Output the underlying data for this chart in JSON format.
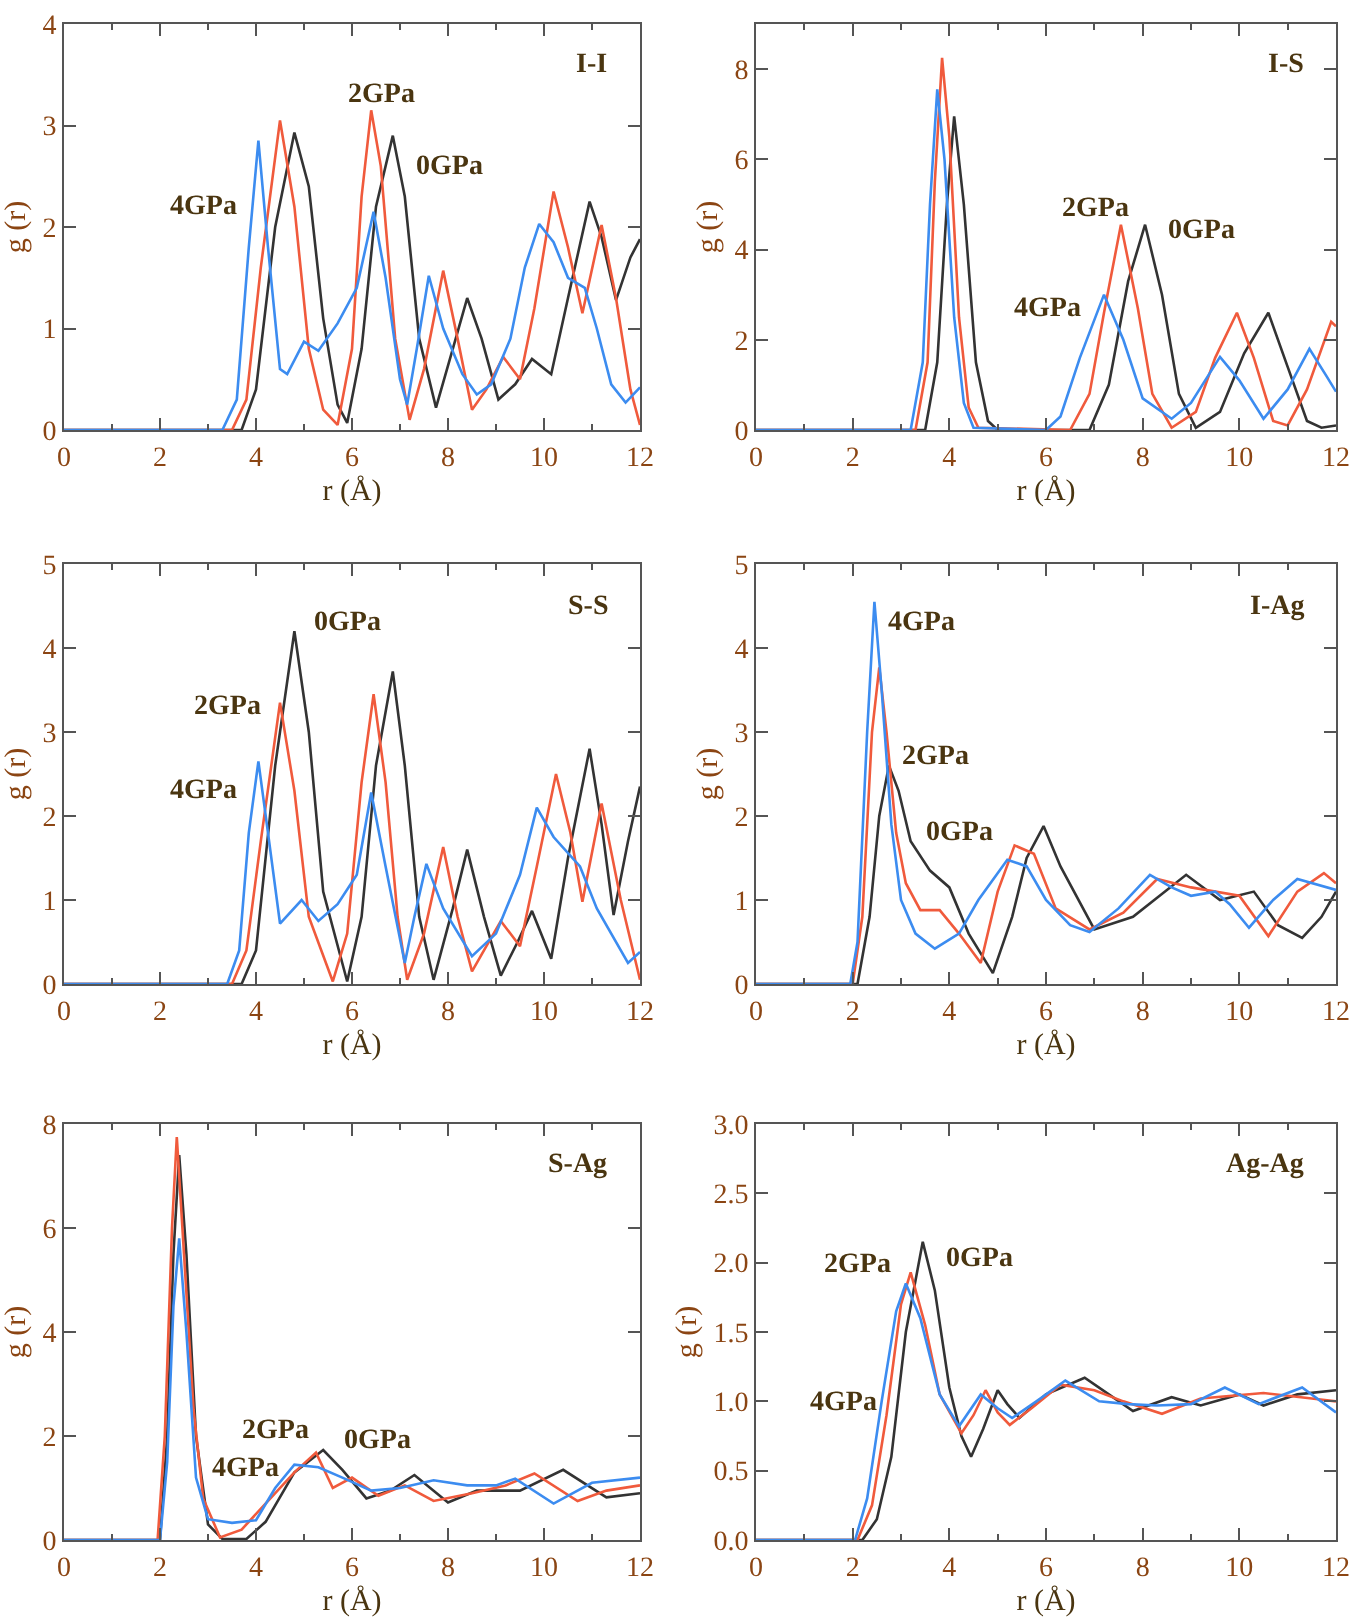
{
  "chart_data": [
    {
      "type": "line",
      "title": "I-I",
      "xlabel": "r (Å)",
      "ylabel": "g (r)",
      "xlim": [
        0,
        12
      ],
      "xticks": [
        0,
        2,
        4,
        6,
        8,
        10,
        12
      ],
      "ylim": [
        0,
        4
      ],
      "yticks": [
        0,
        1,
        2,
        3,
        4
      ],
      "grid": false,
      "legend": false,
      "series": [
        {
          "name": "0GPa",
          "color": "#333333",
          "x": [
            0,
            3.7,
            4.0,
            4.4,
            4.8,
            5.1,
            5.4,
            5.7,
            5.9,
            6.2,
            6.5,
            6.85,
            7.1,
            7.4,
            7.75,
            8.1,
            8.4,
            8.7,
            9.05,
            9.4,
            9.75,
            10.15,
            10.5,
            10.95,
            11.2,
            11.5,
            11.8,
            12
          ],
          "values": [
            0,
            0,
            0.4,
            2.0,
            2.93,
            2.4,
            1.1,
            0.25,
            0.07,
            0.8,
            2.2,
            2.9,
            2.3,
            0.9,
            0.22,
            0.8,
            1.3,
            0.9,
            0.3,
            0.45,
            0.7,
            0.55,
            1.3,
            2.25,
            1.9,
            1.28,
            1.7,
            1.88
          ]
        },
        {
          "name": "2GPa",
          "color": "#f05a3c",
          "x": [
            0,
            3.5,
            3.8,
            4.1,
            4.5,
            4.8,
            5.1,
            5.4,
            5.7,
            6.0,
            6.2,
            6.4,
            6.6,
            6.9,
            7.2,
            7.5,
            7.9,
            8.2,
            8.5,
            8.8,
            9.15,
            9.5,
            9.8,
            10.2,
            10.5,
            10.8,
            11.2,
            11.5,
            11.8,
            12
          ],
          "values": [
            0,
            0,
            0.3,
            1.6,
            3.05,
            2.2,
            0.8,
            0.2,
            0.05,
            0.8,
            2.3,
            3.15,
            2.6,
            0.9,
            0.1,
            0.6,
            1.57,
            0.9,
            0.2,
            0.4,
            0.72,
            0.5,
            1.2,
            2.35,
            1.8,
            1.15,
            2.02,
            1.3,
            0.4,
            0.05
          ]
        },
        {
          "name": "4GPa",
          "color": "#3c8cf0",
          "x": [
            0,
            3.3,
            3.6,
            3.85,
            4.05,
            4.25,
            4.5,
            4.65,
            5.0,
            5.3,
            5.7,
            6.1,
            6.45,
            6.7,
            7.0,
            7.15,
            7.35,
            7.6,
            7.9,
            8.3,
            8.6,
            8.9,
            9.3,
            9.6,
            9.9,
            10.2,
            10.5,
            10.85,
            11.1,
            11.4,
            11.7,
            12
          ],
          "values": [
            0,
            0,
            0.3,
            1.8,
            2.85,
            1.8,
            0.6,
            0.55,
            0.87,
            0.78,
            1.05,
            1.4,
            2.15,
            1.5,
            0.5,
            0.25,
            0.8,
            1.52,
            1.0,
            0.55,
            0.35,
            0.45,
            0.9,
            1.6,
            2.03,
            1.85,
            1.5,
            1.4,
            1.0,
            0.45,
            0.27,
            0.42
          ]
        }
      ]
    },
    {
      "type": "line",
      "title": "I-S",
      "xlabel": "r (Å)",
      "ylabel": "g (r)",
      "xlim": [
        0,
        12
      ],
      "xticks": [
        0,
        2,
        4,
        6,
        8,
        10,
        12
      ],
      "ylim": [
        0,
        9
      ],
      "yticks": [
        0,
        2,
        4,
        6,
        8
      ],
      "grid": false,
      "legend": false,
      "series": [
        {
          "name": "0GPa",
          "color": "#333333",
          "x": [
            0,
            3.5,
            3.75,
            3.95,
            4.1,
            4.3,
            4.55,
            4.8,
            5.0,
            6.9,
            7.3,
            7.7,
            8.05,
            8.4,
            8.75,
            9.1,
            9.6,
            10.1,
            10.6,
            11.0,
            11.4,
            11.7,
            12
          ],
          "values": [
            0,
            0,
            1.5,
            5.0,
            6.95,
            5.0,
            1.5,
            0.2,
            0,
            0,
            1.0,
            3.3,
            4.55,
            3.0,
            0.8,
            0.05,
            0.4,
            1.7,
            2.6,
            1.4,
            0.2,
            0.05,
            0.1
          ]
        },
        {
          "name": "2GPa",
          "color": "#f05a3c",
          "x": [
            0,
            3.3,
            3.55,
            3.7,
            3.85,
            4.0,
            4.2,
            4.4,
            4.6,
            6.5,
            6.9,
            7.2,
            7.55,
            7.9,
            8.2,
            8.6,
            9.1,
            9.5,
            9.95,
            10.3,
            10.7,
            11.0,
            11.4,
            11.9,
            12
          ],
          "values": [
            0,
            0,
            1.5,
            5.5,
            8.25,
            6.5,
            2.5,
            0.5,
            0.05,
            0,
            0.8,
            2.6,
            4.55,
            2.7,
            0.8,
            0.05,
            0.4,
            1.6,
            2.6,
            1.6,
            0.2,
            0.1,
            0.9,
            2.4,
            2.3
          ]
        },
        {
          "name": "4GPa",
          "color": "#3c8cf0",
          "x": [
            0,
            3.2,
            3.45,
            3.6,
            3.75,
            3.9,
            4.1,
            4.3,
            4.5,
            6.0,
            6.3,
            6.7,
            7.2,
            7.6,
            8.0,
            8.6,
            9.0,
            9.6,
            10.0,
            10.5,
            11.0,
            11.45,
            11.8,
            12
          ],
          "values": [
            0,
            0,
            1.5,
            5.0,
            7.55,
            6.0,
            2.5,
            0.6,
            0.05,
            0,
            0.3,
            1.6,
            3.0,
            2.0,
            0.7,
            0.25,
            0.6,
            1.62,
            1.1,
            0.25,
            0.9,
            1.8,
            1.2,
            0.85
          ]
        }
      ]
    },
    {
      "type": "line",
      "title": "S-S",
      "xlabel": "r (Å)",
      "ylabel": "g (r)",
      "xlim": [
        0,
        12
      ],
      "xticks": [
        0,
        2,
        4,
        6,
        8,
        10,
        12
      ],
      "ylim": [
        0,
        5
      ],
      "yticks": [
        0,
        1,
        2,
        3,
        4,
        5
      ],
      "grid": false,
      "legend": false,
      "series": [
        {
          "name": "0GPa",
          "color": "#333333",
          "x": [
            0,
            3.7,
            4.0,
            4.4,
            4.8,
            5.1,
            5.4,
            5.9,
            6.2,
            6.5,
            6.85,
            7.1,
            7.4,
            7.7,
            8.1,
            8.4,
            8.75,
            9.1,
            9.45,
            9.75,
            10.15,
            10.5,
            10.95,
            11.2,
            11.45,
            11.75,
            12
          ],
          "values": [
            0,
            0,
            0.4,
            2.6,
            4.2,
            3.0,
            1.1,
            0.03,
            0.8,
            2.6,
            3.72,
            2.6,
            0.8,
            0.05,
            0.9,
            1.6,
            0.8,
            0.1,
            0.5,
            0.87,
            0.3,
            1.5,
            2.8,
            1.9,
            0.82,
            1.7,
            2.35
          ]
        },
        {
          "name": "2GPa",
          "color": "#f05a3c",
          "x": [
            0,
            3.5,
            3.8,
            4.1,
            4.5,
            4.8,
            5.1,
            5.6,
            5.9,
            6.2,
            6.45,
            6.7,
            6.95,
            7.15,
            7.5,
            7.9,
            8.2,
            8.5,
            8.8,
            9.1,
            9.5,
            9.85,
            10.25,
            10.55,
            10.8,
            11.2,
            11.6,
            12
          ],
          "values": [
            0,
            0,
            0.4,
            1.7,
            3.35,
            2.3,
            0.8,
            0.03,
            0.6,
            2.4,
            3.45,
            2.4,
            0.8,
            0.05,
            0.6,
            1.63,
            0.8,
            0.15,
            0.45,
            0.75,
            0.45,
            1.4,
            2.5,
            1.8,
            0.98,
            2.15,
            1.0,
            0.05
          ]
        },
        {
          "name": "4GPa",
          "color": "#3c8cf0",
          "x": [
            0,
            3.4,
            3.65,
            3.85,
            4.05,
            4.25,
            4.5,
            4.95,
            5.3,
            5.7,
            6.1,
            6.4,
            6.7,
            7.1,
            7.3,
            7.55,
            7.9,
            8.5,
            9.0,
            9.5,
            9.85,
            10.2,
            10.75,
            11.1,
            11.75,
            12
          ],
          "values": [
            0,
            0,
            0.4,
            1.8,
            2.65,
            1.8,
            0.72,
            1.0,
            0.75,
            0.95,
            1.3,
            2.28,
            1.4,
            0.25,
            0.8,
            1.43,
            0.9,
            0.33,
            0.6,
            1.3,
            2.1,
            1.75,
            1.4,
            0.9,
            0.25,
            0.38
          ]
        }
      ]
    },
    {
      "type": "line",
      "title": "I-Ag",
      "xlabel": "r (Å)",
      "ylabel": "g (r)",
      "xlim": [
        0,
        12
      ],
      "xticks": [
        0,
        2,
        4,
        6,
        8,
        10,
        12
      ],
      "ylim": [
        0,
        5
      ],
      "yticks": [
        0,
        1,
        2,
        3,
        4,
        5
      ],
      "grid": false,
      "legend": false,
      "series": [
        {
          "name": "0GPa",
          "color": "#333333",
          "x": [
            0,
            2.1,
            2.35,
            2.55,
            2.75,
            2.95,
            3.2,
            3.6,
            4.0,
            4.4,
            4.9,
            5.3,
            5.6,
            5.95,
            6.3,
            7.0,
            7.8,
            8.9,
            9.6,
            10.3,
            10.8,
            11.3,
            11.7,
            12
          ],
          "values": [
            0,
            0,
            0.8,
            2.0,
            2.6,
            2.3,
            1.7,
            1.35,
            1.15,
            0.6,
            0.13,
            0.8,
            1.5,
            1.88,
            1.4,
            0.65,
            0.8,
            1.3,
            1.0,
            1.1,
            0.7,
            0.55,
            0.8,
            1.1
          ]
        },
        {
          "name": "2GPa",
          "color": "#f05a3c",
          "x": [
            0,
            2.0,
            2.2,
            2.4,
            2.55,
            2.7,
            2.9,
            3.1,
            3.4,
            3.8,
            4.2,
            4.65,
            5.0,
            5.35,
            5.75,
            6.2,
            6.9,
            7.6,
            8.3,
            9.0,
            10.0,
            10.6,
            11.2,
            11.75,
            12
          ],
          "values": [
            0,
            0,
            0.8,
            3.0,
            3.77,
            3.0,
            1.8,
            1.2,
            0.88,
            0.88,
            0.6,
            0.25,
            1.1,
            1.65,
            1.55,
            0.9,
            0.65,
            0.85,
            1.25,
            1.15,
            1.05,
            0.57,
            1.1,
            1.32,
            1.2
          ]
        },
        {
          "name": "4GPa",
          "color": "#3c8cf0",
          "x": [
            0,
            1.95,
            2.1,
            2.3,
            2.45,
            2.6,
            2.8,
            3.0,
            3.3,
            3.7,
            4.2,
            4.6,
            5.2,
            5.6,
            6.0,
            6.5,
            6.9,
            7.5,
            8.15,
            8.6,
            9.0,
            9.5,
            9.8,
            10.2,
            10.7,
            11.2,
            12
          ],
          "values": [
            0,
            0,
            0.5,
            3.0,
            4.55,
            3.5,
            1.9,
            1.0,
            0.6,
            0.42,
            0.6,
            1.0,
            1.48,
            1.4,
            1.0,
            0.7,
            0.62,
            0.9,
            1.3,
            1.15,
            1.05,
            1.1,
            0.95,
            0.67,
            1.0,
            1.25,
            1.12
          ]
        }
      ]
    },
    {
      "type": "line",
      "title": "S-Ag",
      "xlabel": "r (Å)",
      "ylabel": "g (r)",
      "xlim": [
        0,
        12
      ],
      "xticks": [
        0,
        2,
        4,
        6,
        8,
        10,
        12
      ],
      "ylim": [
        0,
        8
      ],
      "yticks": [
        0,
        2,
        4,
        6,
        8
      ],
      "grid": false,
      "legend": false,
      "series": [
        {
          "name": "0GPa",
          "color": "#333333",
          "x": [
            0,
            2.0,
            2.15,
            2.28,
            2.4,
            2.55,
            2.75,
            3.0,
            3.3,
            3.8,
            4.2,
            4.8,
            5.4,
            5.8,
            6.3,
            6.8,
            7.3,
            8.0,
            8.6,
            9.5,
            10.4,
            11.3,
            12
          ],
          "values": [
            0,
            0,
            2.0,
            5.5,
            7.4,
            5.5,
            2.0,
            0.3,
            0.02,
            0.02,
            0.35,
            1.3,
            1.73,
            1.35,
            0.8,
            0.95,
            1.25,
            0.72,
            0.95,
            0.95,
            1.35,
            0.82,
            0.9
          ]
        },
        {
          "name": "2GPa",
          "color": "#f05a3c",
          "x": [
            0,
            1.95,
            2.1,
            2.25,
            2.35,
            2.5,
            2.7,
            2.9,
            3.25,
            3.7,
            4.3,
            4.8,
            5.25,
            5.6,
            6.0,
            6.55,
            7.1,
            7.7,
            8.5,
            9.2,
            9.8,
            10.7,
            11.3,
            12
          ],
          "values": [
            0,
            0,
            2.0,
            6.0,
            7.75,
            5.5,
            2.5,
            0.8,
            0.05,
            0.2,
            0.8,
            1.3,
            1.68,
            1.0,
            1.2,
            0.85,
            1.05,
            0.75,
            0.9,
            1.05,
            1.28,
            0.75,
            0.95,
            1.05
          ]
        },
        {
          "name": "4GPa",
          "color": "#3c8cf0",
          "x": [
            0,
            2.0,
            2.15,
            2.28,
            2.4,
            2.55,
            2.75,
            3.0,
            3.5,
            4.0,
            4.4,
            4.8,
            5.3,
            5.8,
            6.4,
            7.0,
            7.7,
            8.4,
            9.0,
            9.4,
            10.2,
            11.0,
            12
          ],
          "values": [
            0,
            0,
            1.5,
            4.5,
            5.8,
            4.0,
            1.2,
            0.4,
            0.33,
            0.38,
            1.0,
            1.45,
            1.4,
            1.2,
            0.95,
            1.0,
            1.15,
            1.05,
            1.05,
            1.18,
            0.7,
            1.1,
            1.2
          ]
        }
      ]
    },
    {
      "type": "line",
      "title": "Ag-Ag",
      "xlabel": "r (Å)",
      "ylabel": "g (r)",
      "xlim": [
        0,
        12
      ],
      "xticks": [
        0,
        2,
        4,
        6,
        8,
        10,
        12
      ],
      "ylim": [
        0,
        3
      ],
      "yticks": [
        {
          "value": 0,
          "label": "0.0"
        },
        {
          "value": 0.5,
          "label": "0.5"
        },
        {
          "value": 1,
          "label": "1.0"
        },
        {
          "value": 1.5,
          "label": "1.5"
        },
        {
          "value": 2,
          "label": "2.0"
        },
        {
          "value": 2.5,
          "label": "2.5"
        },
        {
          "value": 3,
          "label": "3.0"
        }
      ],
      "grid": false,
      "legend": false,
      "series": [
        {
          "name": "0GPa",
          "color": "#333333",
          "x": [
            0,
            2.2,
            2.5,
            2.8,
            3.1,
            3.45,
            3.7,
            4.0,
            4.25,
            4.45,
            4.7,
            5.0,
            5.2,
            5.45,
            6.0,
            6.8,
            7.3,
            7.8,
            8.6,
            9.2,
            10.0,
            10.5,
            11.2,
            12
          ],
          "values": [
            0,
            0,
            0.15,
            0.6,
            1.5,
            2.15,
            1.8,
            1.1,
            0.75,
            0.6,
            0.8,
            1.08,
            0.98,
            0.88,
            1.05,
            1.17,
            1.05,
            0.93,
            1.03,
            0.97,
            1.05,
            0.97,
            1.05,
            1.08
          ]
        },
        {
          "name": "2GPa",
          "color": "#f05a3c",
          "x": [
            0,
            2.1,
            2.4,
            2.7,
            3.0,
            3.2,
            3.5,
            3.8,
            4.25,
            4.5,
            4.75,
            5.0,
            5.25,
            5.7,
            6.3,
            7.0,
            7.6,
            8.4,
            9.2,
            10.5,
            11.5,
            12
          ],
          "values": [
            0,
            0,
            0.25,
            0.9,
            1.7,
            1.93,
            1.55,
            1.05,
            0.77,
            0.9,
            1.08,
            0.92,
            0.83,
            0.95,
            1.12,
            1.08,
            1.0,
            0.91,
            1.02,
            1.06,
            1.02,
            1.0
          ]
        },
        {
          "name": "4GPa",
          "color": "#3c8cf0",
          "x": [
            0,
            2.05,
            2.3,
            2.6,
            2.9,
            3.1,
            3.4,
            3.8,
            4.2,
            4.65,
            5.0,
            5.3,
            5.8,
            6.4,
            7.1,
            7.7,
            8.3,
            9.0,
            9.7,
            10.4,
            11.3,
            12
          ],
          "values": [
            0,
            0,
            0.3,
            1.0,
            1.65,
            1.85,
            1.6,
            1.05,
            0.82,
            1.05,
            0.95,
            0.88,
            1.0,
            1.15,
            1.0,
            0.98,
            0.97,
            0.98,
            1.1,
            0.98,
            1.1,
            0.92
          ]
        }
      ]
    }
  ]
}
